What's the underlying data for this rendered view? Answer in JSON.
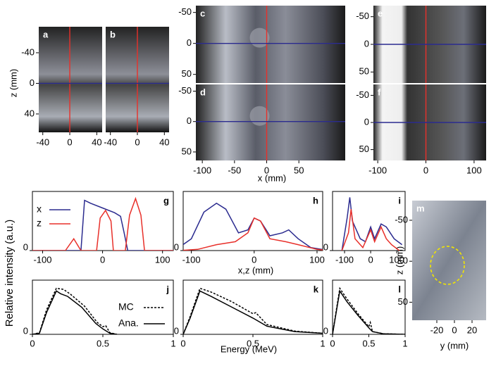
{
  "y_label": "Relative intensity (a.u.)",
  "x_label_top": "x,z (mm)",
  "x_label_bottom": "Energy (MeV)",
  "image_axis_labels": {
    "z_left": "z (mm)",
    "x_mid": "x (mm)",
    "z_m": "z (mm)",
    "y_m": "y (mm)"
  },
  "images": [
    {
      "label": "a",
      "xlim": [
        -46,
        48
      ],
      "ylim": [
        -74,
        64
      ],
      "xticks": [
        -40,
        0,
        40
      ],
      "yticks": [
        -40,
        0,
        40
      ]
    },
    {
      "label": "b",
      "xlim": [
        -47,
        47
      ],
      "ylim": [
        -74,
        64
      ],
      "xticks": [
        -40,
        0,
        40
      ]
    },
    {
      "label": "c",
      "xlim": [
        -110,
        122
      ],
      "ylim": [
        -61,
        64
      ],
      "yticks": [
        -50,
        0,
        50
      ]
    },
    {
      "label": "d",
      "xlim": [
        -110,
        122
      ],
      "ylim": [
        -61,
        64
      ],
      "xticks": [
        -100,
        -50,
        0,
        50
      ],
      "yticks": [
        -50,
        0,
        50
      ]
    },
    {
      "label": "e",
      "xlim": [
        -109,
        125
      ],
      "ylim": [
        -70,
        70
      ],
      "yticks": [
        -50,
        0,
        50
      ]
    },
    {
      "label": "f",
      "xlim": [
        -109,
        125
      ],
      "ylim": [
        -70,
        70
      ],
      "xticks": [
        -100,
        0,
        100
      ],
      "yticks": [
        -50,
        0,
        50
      ]
    },
    {
      "label": "m",
      "xlim": [
        -48,
        36
      ],
      "ylim": [
        -74,
        72
      ],
      "xticks": [
        -20,
        0,
        20
      ],
      "yticks": [
        -50,
        0,
        50
      ]
    }
  ],
  "chart_data": [
    {
      "type": "line",
      "label": "g",
      "xlim": [
        -117,
        118
      ],
      "ylim": [
        0,
        1
      ],
      "xticks": [
        -100,
        0,
        100
      ],
      "yticks": [
        0
      ],
      "series": [
        {
          "name": "x",
          "color": "#2b2b8f",
          "x": [
            -120,
            -36,
            -30,
            -20,
            0,
            20,
            30,
            36,
            42,
            120
          ],
          "values": [
            0,
            0,
            0.85,
            0.8,
            0.72,
            0.64,
            0.58,
            0.3,
            0,
            0
          ]
        },
        {
          "name": "z",
          "color": "#e8302a",
          "x": [
            -120,
            -62,
            -48,
            -36,
            -10,
            -4,
            5,
            14,
            18,
            38,
            45,
            55,
            64,
            70,
            120
          ],
          "values": [
            0,
            0,
            0.2,
            0,
            0,
            0.55,
            0.68,
            0.5,
            0,
            0,
            0.6,
            0.88,
            0.6,
            0,
            0
          ]
        }
      ]
    },
    {
      "type": "line",
      "label": "h",
      "xlim": [
        -113,
        109
      ],
      "ylim": [
        0,
        1
      ],
      "xticks": [
        -100,
        0,
        100
      ],
      "yticks": [
        0
      ],
      "series": [
        {
          "color": "#2b2b8f",
          "x": [
            -120,
            -100,
            -80,
            -60,
            -45,
            -25,
            -10,
            0,
            10,
            25,
            45,
            55,
            70,
            90,
            120
          ],
          "values": [
            0.05,
            0.2,
            0.65,
            0.8,
            0.7,
            0.3,
            0.35,
            0.55,
            0.5,
            0.25,
            0.3,
            0.35,
            0.2,
            0.05,
            0
          ]
        },
        {
          "color": "#e8302a",
          "x": [
            -120,
            -90,
            -60,
            -30,
            -10,
            0,
            10,
            25,
            50,
            70,
            100,
            120
          ],
          "values": [
            0,
            0.02,
            0.1,
            0.15,
            0.3,
            0.55,
            0.5,
            0.2,
            0.15,
            0.1,
            0.02,
            0
          ]
        }
      ]
    },
    {
      "type": "line",
      "label": "i",
      "xlim": [
        -146,
        132
      ],
      "ylim": [
        0,
        1
      ],
      "xticks": [
        -100,
        0,
        100
      ],
      "yticks": [
        0
      ],
      "series": [
        {
          "color": "#2b2b8f",
          "x": [
            -110,
            -90,
            -80,
            -70,
            -40,
            -20,
            0,
            15,
            40,
            60,
            90,
            120
          ],
          "values": [
            0,
            0.55,
            0.9,
            0.5,
            0.2,
            0.15,
            0.4,
            0.2,
            0.45,
            0.4,
            0.2,
            0.1
          ]
        },
        {
          "color": "#e8302a",
          "x": [
            -110,
            -85,
            -75,
            -60,
            -30,
            0,
            15,
            40,
            60,
            80,
            110
          ],
          "values": [
            0,
            0.3,
            0.7,
            0.2,
            0.05,
            0.35,
            0.15,
            0.4,
            0.2,
            0.1,
            0
          ]
        }
      ]
    },
    {
      "type": "line",
      "label": "j",
      "xlim": [
        0,
        1
      ],
      "ylim": [
        0,
        1
      ],
      "xticks": [
        0,
        0.5,
        1
      ],
      "yticks": [
        0
      ],
      "series": [
        {
          "name": "MC",
          "color": "#000000",
          "dash": true,
          "x": [
            0,
            0.05,
            0.1,
            0.17,
            0.22,
            0.27,
            0.37,
            0.46,
            0.5,
            0.52,
            0.55,
            0.6
          ],
          "values": [
            0,
            0.03,
            0.45,
            0.85,
            0.83,
            0.74,
            0.52,
            0.22,
            0.14,
            0.16,
            0.03,
            0
          ]
        },
        {
          "name": "Ana.",
          "color": "#000000",
          "x": [
            0,
            0.05,
            0.1,
            0.17,
            0.2,
            0.25,
            0.35,
            0.45,
            0.5,
            0.55,
            0.6
          ],
          "values": [
            0,
            0.02,
            0.4,
            0.8,
            0.75,
            0.7,
            0.5,
            0.2,
            0.1,
            0.02,
            0
          ]
        }
      ]
    },
    {
      "type": "line",
      "label": "k",
      "xlim": [
        0,
        1
      ],
      "ylim": [
        0,
        1
      ],
      "xticks": [
        0,
        0.5,
        1
      ],
      "yticks": [
        0
      ],
      "series": [
        {
          "color": "#000000",
          "dash": true,
          "x": [
            0,
            0.05,
            0.12,
            0.2,
            0.35,
            0.5,
            0.52,
            0.6,
            0.8,
            1
          ],
          "values": [
            0,
            0.33,
            0.85,
            0.78,
            0.6,
            0.38,
            0.4,
            0.18,
            0.06,
            0.02
          ]
        },
        {
          "color": "#000000",
          "x": [
            0,
            0.05,
            0.12,
            0.2,
            0.35,
            0.5,
            0.6,
            0.8,
            1
          ],
          "values": [
            0,
            0.3,
            0.8,
            0.7,
            0.5,
            0.3,
            0.15,
            0.05,
            0.02
          ]
        }
      ]
    },
    {
      "type": "line",
      "label": "l",
      "xlim": [
        0,
        1
      ],
      "ylim": [
        0,
        1
      ],
      "xticks": [
        0,
        0.5,
        1
      ],
      "yticks": [
        0
      ],
      "series": [
        {
          "color": "#000000",
          "dash": true,
          "x": [
            0,
            0.05,
            0.1,
            0.2,
            0.35,
            0.5,
            0.52,
            0.55,
            0.7,
            1
          ],
          "values": [
            0,
            0.43,
            0.85,
            0.65,
            0.38,
            0.14,
            0.22,
            0.05,
            0.01,
            0
          ]
        },
        {
          "color": "#000000",
          "x": [
            0,
            0.05,
            0.1,
            0.2,
            0.35,
            0.5,
            0.55,
            0.7,
            1
          ],
          "values": [
            0,
            0.4,
            0.8,
            0.6,
            0.35,
            0.12,
            0.05,
            0.01,
            0
          ]
        }
      ]
    }
  ]
}
